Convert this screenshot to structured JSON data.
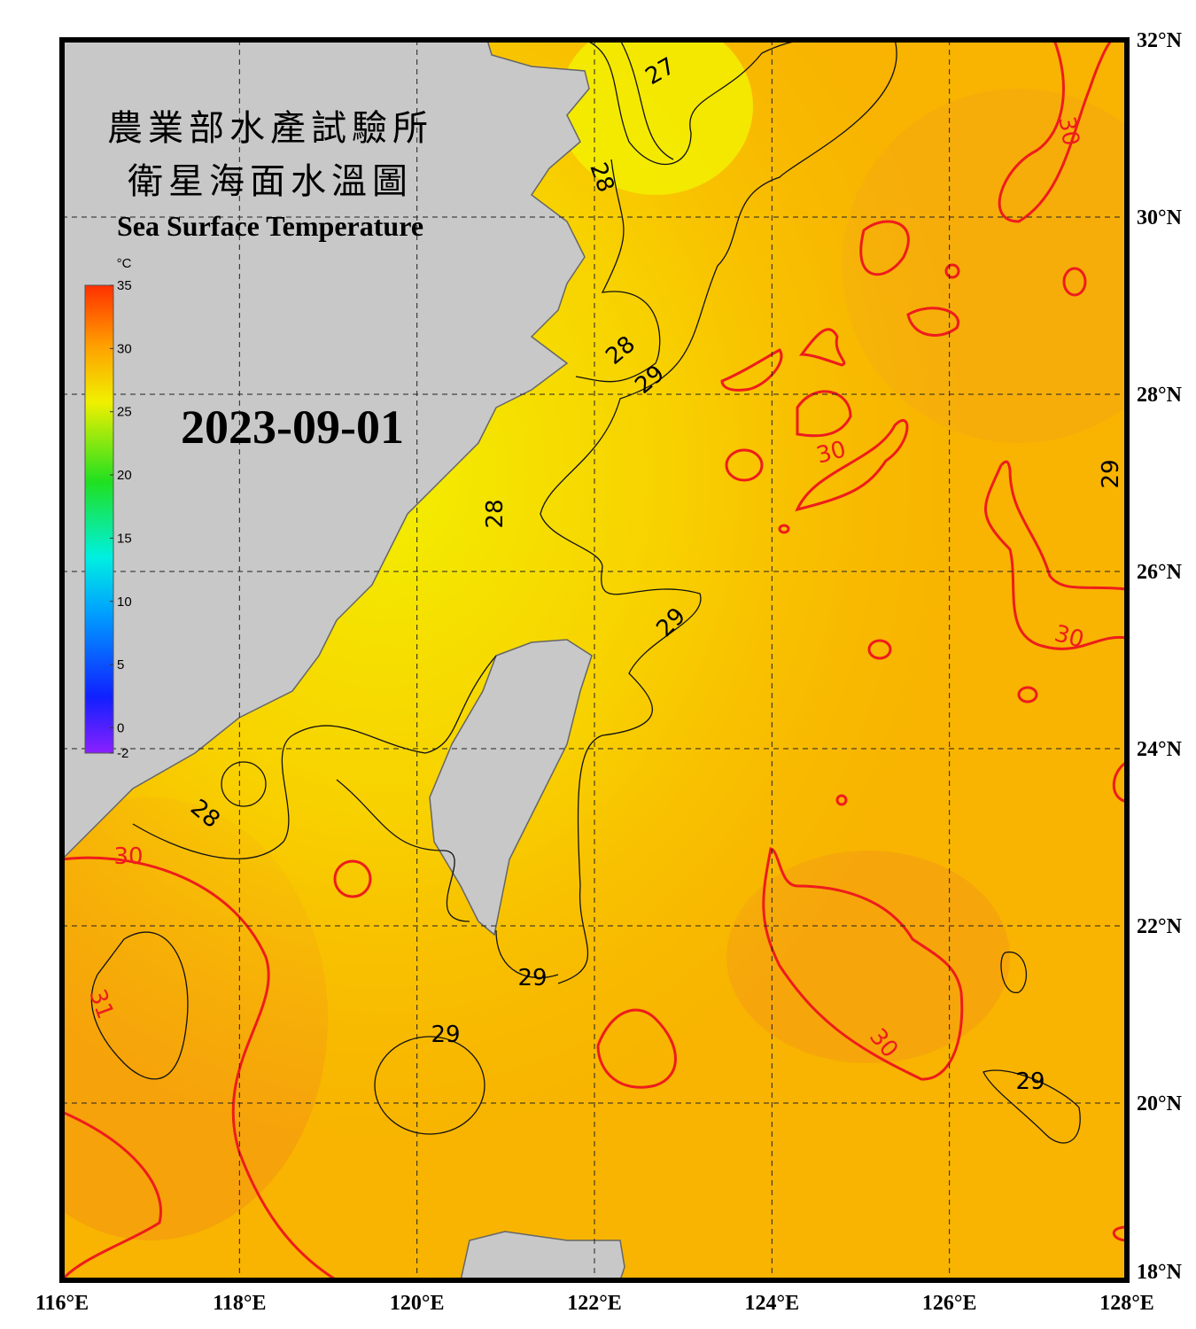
{
  "header": {
    "title_zh_1": "農業部水產試驗所",
    "title_zh_2": "衛星海面水溫圖",
    "title_en": "Sea Surface Temperature"
  },
  "date": "2023-09-01",
  "colorbar": {
    "unit": "°C",
    "ticks": [
      35,
      30,
      25,
      20,
      15,
      10,
      5,
      0,
      -2
    ],
    "range": [
      -2,
      35
    ]
  },
  "lon_labels": [
    "116°E",
    "118°E",
    "120°E",
    "122°E",
    "124°E",
    "126°E",
    "128°E"
  ],
  "lat_labels": [
    "32°N",
    "30°N",
    "28°N",
    "26°N",
    "24°N",
    "22°N",
    "20°N",
    "18°N"
  ],
  "contour_labels": [
    27,
    28,
    28,
    29,
    28,
    29,
    30,
    30,
    29,
    30,
    28,
    30,
    31,
    29,
    29,
    30,
    29
  ]
}
